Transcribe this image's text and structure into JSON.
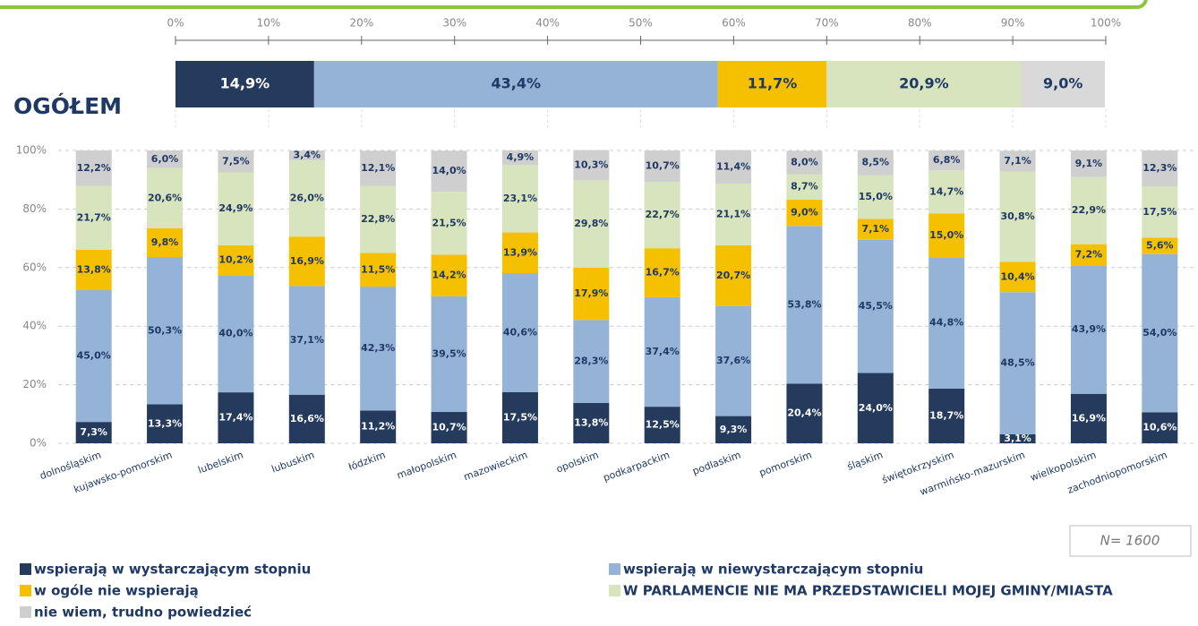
{
  "chart_data": [
    {
      "type": "hbar",
      "stacked": true,
      "categories": [
        "OGÓŁEM"
      ],
      "series": [
        {
          "color": "#243b5e",
          "values": [
            14.9
          ],
          "value_labels": [
            "14,9%"
          ]
        },
        {
          "color": "#95b3d7",
          "values": [
            43.4
          ],
          "value_labels": [
            "43,4%"
          ]
        },
        {
          "color": "#f5c000",
          "values": [
            11.7
          ],
          "value_labels": [
            "11,7%"
          ]
        },
        {
          "color": "#d7e4bd",
          "values": [
            20.9
          ],
          "value_labels": [
            "20,9%"
          ]
        },
        {
          "color": "#d9d9d9",
          "values": [
            9.0
          ],
          "value_labels": [
            "9,0%"
          ]
        }
      ],
      "xlim": [
        0,
        100
      ],
      "xticks": [
        {
          "value": 0,
          "label": "0%"
        },
        {
          "value": 10,
          "label": "10%"
        },
        {
          "value": 20,
          "label": "20%"
        },
        {
          "value": 30,
          "label": "30%"
        },
        {
          "value": 40,
          "label": "40%"
        },
        {
          "value": 50,
          "label": "50%"
        },
        {
          "value": 60,
          "label": "60%"
        },
        {
          "value": 70,
          "label": "70%"
        },
        {
          "value": 80,
          "label": "80%"
        },
        {
          "value": 90,
          "label": "90%"
        },
        {
          "value": 100,
          "label": "100%"
        }
      ]
    },
    {
      "type": "bar",
      "stacked": true,
      "categories": [
        "dolnośląskim",
        "kujawsko-pomorskim",
        "lubelskim",
        "lubuskim",
        "łódzkim",
        "małopolskim",
        "mazowieckim",
        "opolskim",
        "podkarpackim",
        "podlaskim",
        "pomorskim",
        "śląskim",
        "świętokrzyskim",
        "warmińsko-mazurskim",
        "wielkopolskim",
        "zachodniopomorskim"
      ],
      "series": [
        {
          "name": "wspierają w wystarczającym stopniu",
          "color": "#243b5e",
          "values": [
            7.3,
            13.3,
            17.4,
            16.6,
            11.2,
            10.7,
            17.5,
            13.8,
            12.5,
            9.3,
            20.4,
            24.0,
            18.7,
            3.1,
            16.9,
            10.6
          ],
          "value_labels": [
            "7,3%",
            "13,3%",
            "17,4%",
            "16,6%",
            "11,2%",
            "10,7%",
            "17,5%",
            "13,8%",
            "12,5%",
            "9,3%",
            "20,4%",
            "24,0%",
            "18,7%",
            "3,1%",
            "16,9%",
            "10,6%"
          ]
        },
        {
          "name": "wspierają w niewystarczającym stopniu",
          "color": "#95b3d7",
          "values": [
            45.0,
            50.3,
            40.0,
            37.1,
            42.3,
            39.5,
            40.6,
            28.3,
            37.4,
            37.6,
            53.8,
            45.5,
            44.8,
            48.5,
            43.9,
            54.0
          ],
          "value_labels": [
            "45,0%",
            "50,3%",
            "40,0%",
            "37,1%",
            "42,3%",
            "39,5%",
            "40,6%",
            "28,3%",
            "37,4%",
            "37,6%",
            "53,8%",
            "45,5%",
            "44,8%",
            "48,5%",
            "43,9%",
            "54,0%"
          ]
        },
        {
          "name": "w ogóle nie wspierają",
          "color": "#f5c000",
          "values": [
            13.8,
            9.8,
            10.2,
            16.9,
            11.5,
            14.2,
            13.9,
            17.9,
            16.7,
            20.7,
            9.0,
            7.1,
            15.0,
            10.4,
            7.2,
            5.6
          ],
          "value_labels": [
            "13,8%",
            "9,8%",
            "10,2%",
            "16,9%",
            "11,5%",
            "14,2%",
            "13,9%",
            "17,9%",
            "16,7%",
            "20,7%",
            "9,0%",
            "7,1%",
            "15,0%",
            "10,4%",
            "7,2%",
            "5,6%"
          ]
        },
        {
          "name": "W PARLAMENCIE NIE MA PRZEDSTAWICIELI MOJEJ GMINY/MIASTA",
          "color": "#d7e4bd",
          "values": [
            21.7,
            20.6,
            24.9,
            26.0,
            22.8,
            21.5,
            23.1,
            29.8,
            22.7,
            21.1,
            8.7,
            15.0,
            14.7,
            30.8,
            22.9,
            17.5
          ],
          "value_labels": [
            "21,7%",
            "20,6%",
            "24,9%",
            "26,0%",
            "22,8%",
            "21,5%",
            "23,1%",
            "29,8%",
            "22,7%",
            "21,1%",
            "8,7%",
            "15,0%",
            "14,7%",
            "30,8%",
            "22,9%",
            "17,5%"
          ]
        },
        {
          "name": "nie wiem, trudno powiedzieć",
          "color": "#cfcfcf",
          "values": [
            12.2,
            6.0,
            7.5,
            3.4,
            12.1,
            14.0,
            4.9,
            10.3,
            10.7,
            11.4,
            8.0,
            8.5,
            6.8,
            7.1,
            9.1,
            12.3
          ],
          "value_labels": [
            "12,2%",
            "6,0%",
            "7,5%",
            "3,4%",
            "12,1%",
            "14,0%",
            "4,9%",
            "10,3%",
            "10,7%",
            "11,4%",
            "8,0%",
            "8,5%",
            "6,8%",
            "7,1%",
            "9,1%",
            "12,3%"
          ]
        }
      ],
      "ylim": [
        0,
        100
      ],
      "yticks": [
        {
          "value": 0,
          "label": "0%"
        },
        {
          "value": 20,
          "label": "20%"
        },
        {
          "value": 40,
          "label": "40%"
        },
        {
          "value": 60,
          "label": "60%"
        },
        {
          "value": 80,
          "label": "80%"
        },
        {
          "value": 100,
          "label": "100%"
        }
      ],
      "grid": true,
      "annotation": "N= 1600"
    }
  ]
}
